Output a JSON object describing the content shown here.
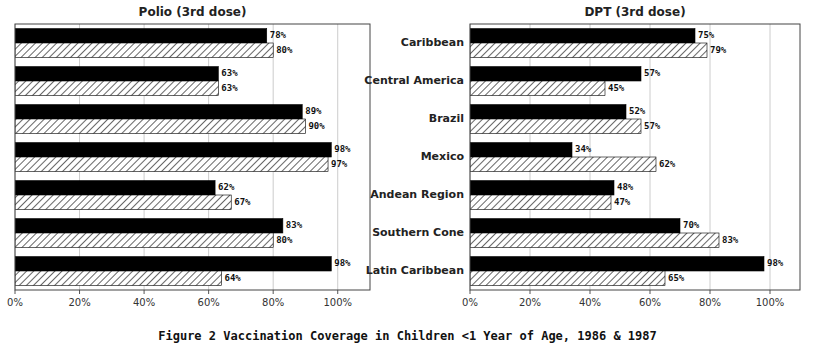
{
  "title": "Figure 2   Vaccination Coverage in Children <1 Year of Age, 1986 & 1987",
  "chart_data": [
    {
      "type": "bar",
      "orientation": "horizontal",
      "title": "Polio (3rd dose)",
      "categories": [
        null,
        null,
        null,
        null,
        null,
        null,
        null
      ],
      "series": [
        {
          "color": "#000000",
          "values": [
            78,
            63,
            89,
            98,
            62,
            83,
            98
          ],
          "value_labels": [
            "78%",
            "63%",
            "89%",
            "98%",
            "62%",
            "83%",
            "98%"
          ]
        },
        {
          "color": "#ffffff",
          "values": [
            80,
            63,
            90,
            97,
            67,
            80,
            64
          ],
          "value_labels": [
            "80%",
            "63%",
            "90%",
            "97%",
            "67%",
            "80%",
            "64%"
          ]
        }
      ],
      "xlim": [
        0,
        110
      ],
      "xticks": [
        {
          "value": 0,
          "label": "0%"
        },
        {
          "value": 20,
          "label": "20%"
        },
        {
          "value": 40,
          "label": "40%"
        },
        {
          "value": 60,
          "label": "60%"
        },
        {
          "value": 80,
          "label": "80%"
        },
        {
          "value": 100,
          "label": "100%"
        }
      ],
      "grid": true,
      "data_labels": true,
      "tick_labels": "x"
    },
    {
      "type": "bar",
      "orientation": "horizontal",
      "title": "DPT (3rd dose)",
      "categories": [
        "Caribbean",
        "Central America",
        "Brazil",
        "Mexico",
        "Andean Region",
        "Southern Cone",
        "Latin Caribbean"
      ],
      "series": [
        {
          "color": "#000000",
          "values": [
            75,
            57,
            52,
            34,
            48,
            70,
            98
          ],
          "value_labels": [
            "75%",
            "57%",
            "52%",
            "34%",
            "48%",
            "70%",
            "98%"
          ]
        },
        {
          "color": "#ffffff",
          "values": [
            79,
            45,
            57,
            62,
            47,
            83,
            65
          ],
          "value_labels": [
            "79%",
            "45%",
            "57%",
            "62%",
            "47%",
            "83%",
            "65%"
          ]
        }
      ],
      "xlim": [
        0,
        110
      ],
      "xticks": [
        {
          "value": 0,
          "label": "0%"
        },
        {
          "value": 20,
          "label": "20%"
        },
        {
          "value": 40,
          "label": "40%"
        },
        {
          "value": 60,
          "label": "60%"
        },
        {
          "value": 80,
          "label": "80%"
        },
        {
          "value": 100,
          "label": "100%"
        }
      ],
      "grid": true,
      "data_labels": true
    }
  ]
}
